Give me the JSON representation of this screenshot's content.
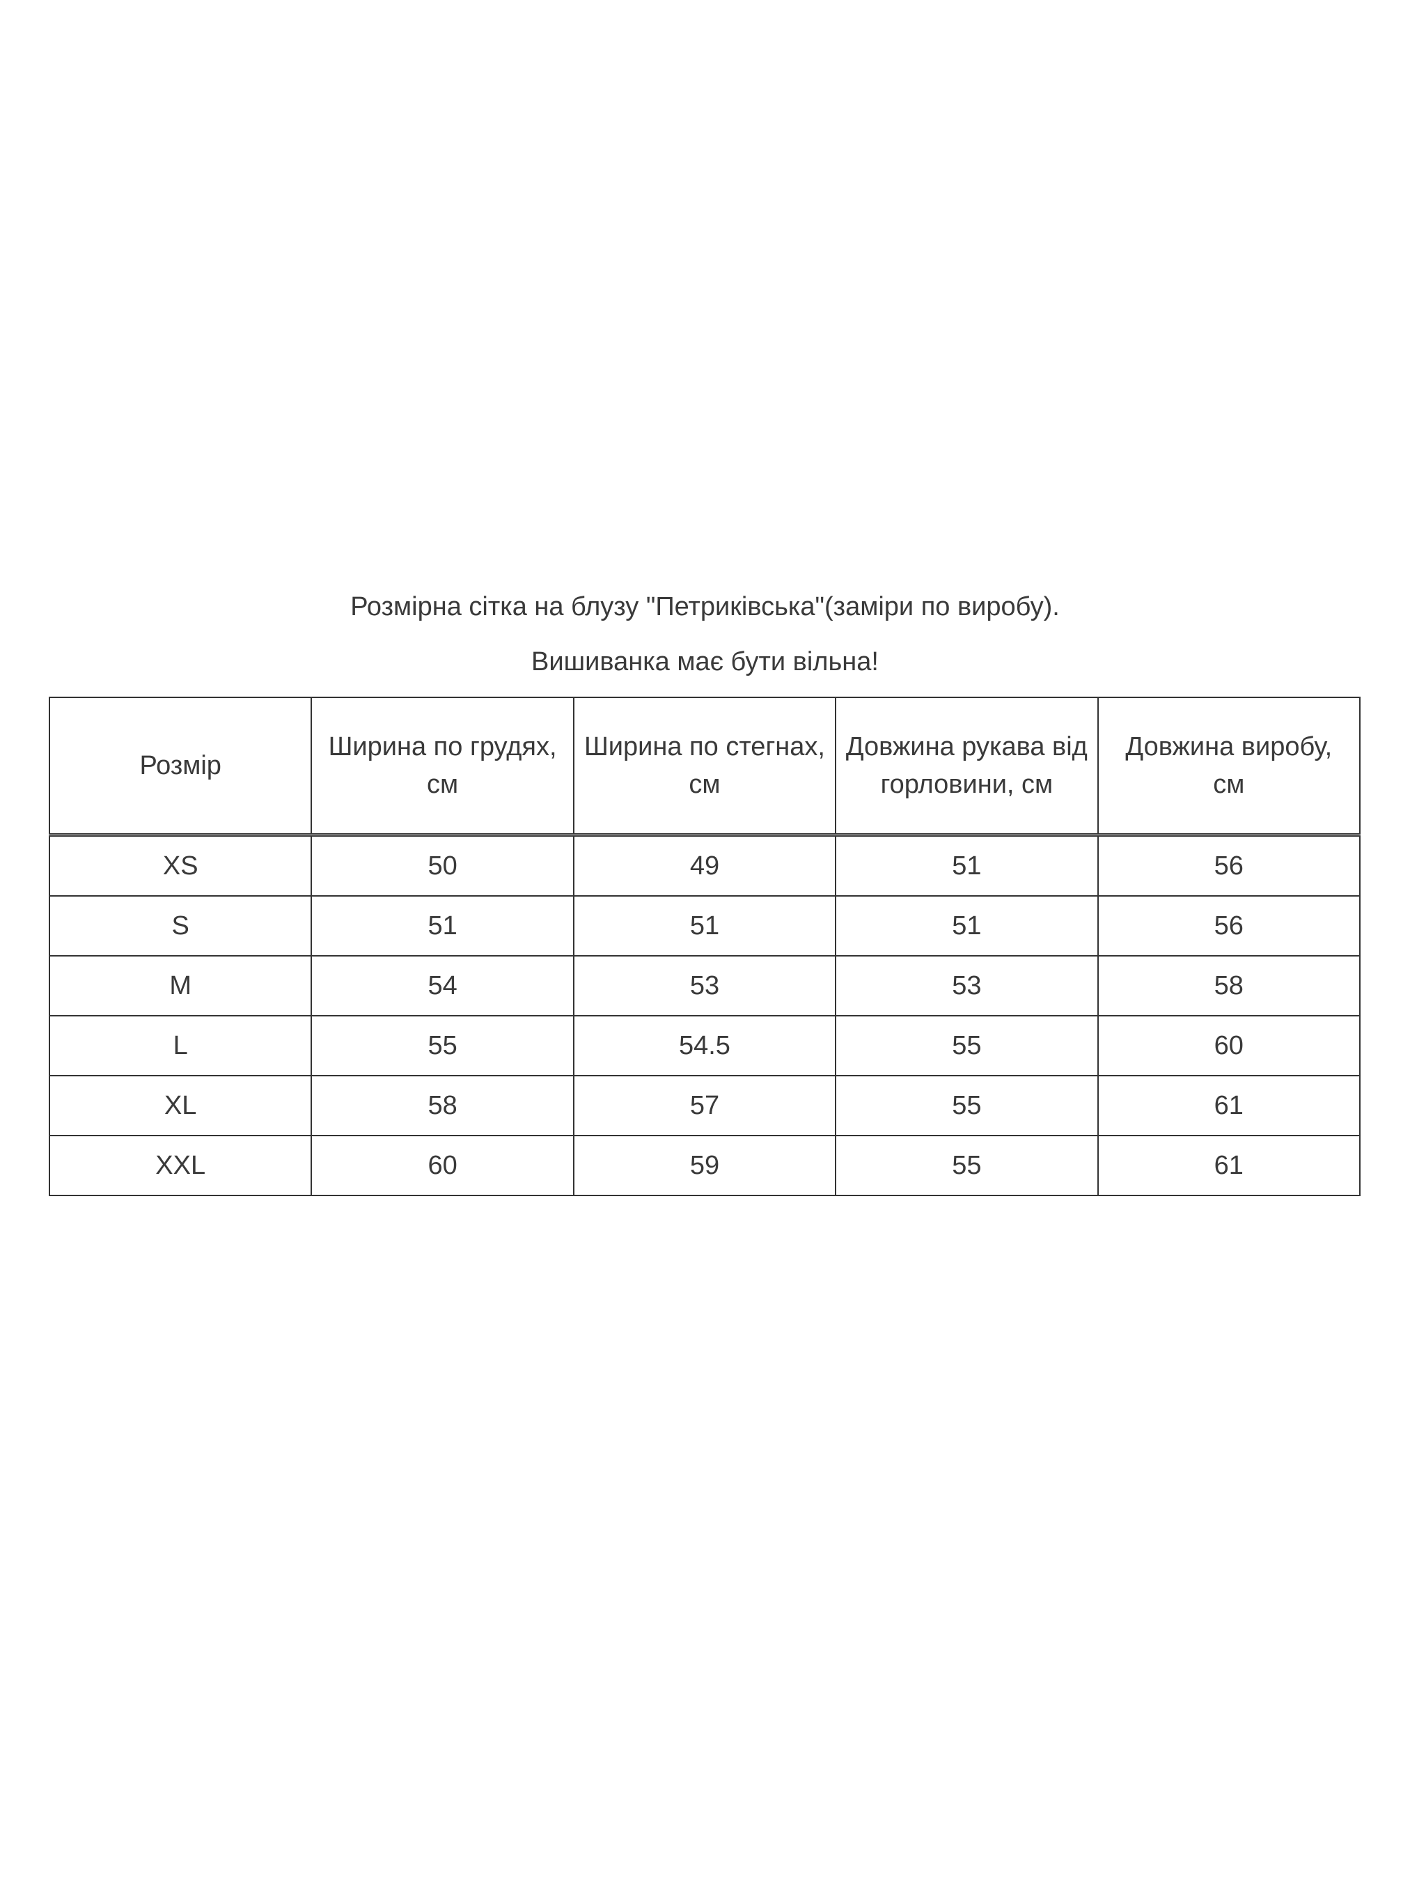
{
  "title": "Розмірна сітка на блузу \"Петриківська\"(заміри по виробу).",
  "subtitle": "Вишиванка має бути вільна!",
  "table": {
    "headers": [
      "Розмір",
      "Ширина по грудях, см",
      "Ширина по стегнах, см",
      "Довжина рукава від горловини, см",
      "Довжина виробу, см"
    ],
    "rows": [
      [
        "XS",
        "50",
        "49",
        "51",
        "56"
      ],
      [
        "S",
        "51",
        "51",
        "51",
        "56"
      ],
      [
        "M",
        "54",
        "53",
        "53",
        "58"
      ],
      [
        "L",
        "55",
        "54.5",
        "55",
        "60"
      ],
      [
        "XL",
        "58",
        "57",
        "55",
        "61"
      ],
      [
        "XXL",
        "60",
        "59",
        "55",
        "61"
      ]
    ]
  }
}
